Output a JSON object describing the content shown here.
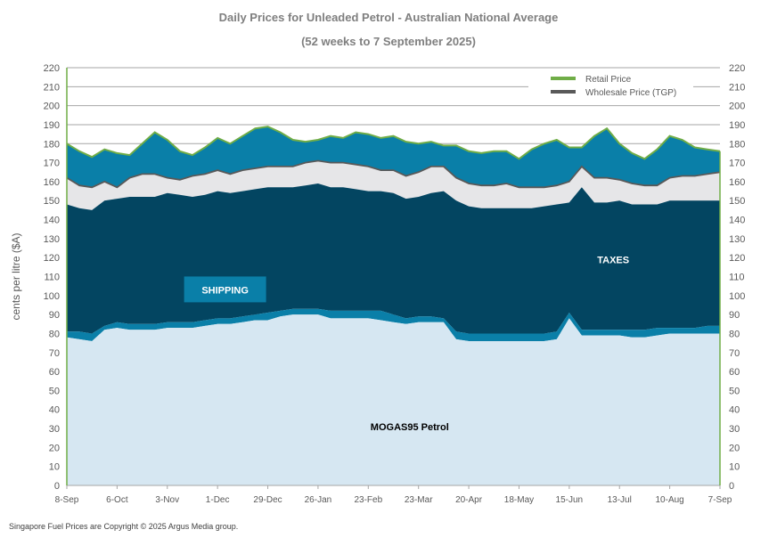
{
  "chart_data": {
    "type": "area",
    "title": "Daily Prices for Unleaded Petrol - Australian National Average",
    "subtitle": "(52 weeks to 7 September 2025)",
    "ylabel": "cents per litre ($A)",
    "ylim": [
      0,
      220
    ],
    "yticks": [
      0,
      10,
      20,
      30,
      40,
      50,
      60,
      70,
      80,
      90,
      100,
      110,
      120,
      130,
      140,
      150,
      160,
      170,
      180,
      190,
      200,
      210,
      220
    ],
    "x_tick_labels": [
      "8-Sep",
      "6-Oct",
      "3-Nov",
      "1-Dec",
      "29-Dec",
      "26-Jan",
      "23-Feb",
      "23-Mar",
      "20-Apr",
      "18-May",
      "15-Jun",
      "13-Jul",
      "10-Aug",
      "7-Sep"
    ],
    "x_weeks": [
      0,
      4,
      8,
      12,
      16,
      20,
      24,
      28,
      32,
      36,
      40,
      44,
      48,
      52
    ],
    "grid": true,
    "legend_position": "top-right",
    "legend": [
      {
        "name": "Retail Price",
        "color": "#70ad47"
      },
      {
        "name": "Wholesale Price (TGP)",
        "color": "#595959"
      }
    ],
    "layer_colors": {
      "mogas": "#d6e7f2",
      "shipping": "#0a7fa8",
      "taxes": "#034561",
      "tgp_gap": "#e6e6e8",
      "margin": "#0a7fa8"
    },
    "annotations": [
      {
        "text": "SHIPPING",
        "style": "box",
        "color": "#ffffff",
        "fill": "#0a7fa8",
        "anchor_week": 12.6,
        "anchor_value": 103
      },
      {
        "text": "TAXES",
        "style": "text",
        "color": "#ffffff",
        "anchor_week": 43.5,
        "anchor_value": 119
      },
      {
        "text": "MOGAS95 Petrol",
        "style": "text",
        "color": "#000000",
        "anchor_week": 27.3,
        "anchor_value": 31
      }
    ],
    "series": [
      {
        "name": "Retail Price",
        "weeks": [
          0,
          1,
          2,
          3,
          4,
          5,
          6,
          7,
          8,
          9,
          10,
          11,
          12,
          13,
          14,
          15,
          16,
          17,
          18,
          19,
          20,
          21,
          22,
          23,
          24,
          25,
          26,
          27,
          28,
          29,
          30,
          31,
          32,
          33,
          34,
          35,
          36,
          37,
          38,
          39,
          40,
          41,
          42,
          43,
          44,
          45,
          46,
          47,
          48,
          49,
          50,
          51,
          52
        ],
        "values": [
          180,
          176,
          173,
          177,
          175,
          174,
          180,
          186,
          182,
          176,
          174,
          178,
          183,
          180,
          184,
          188,
          189,
          186,
          182,
          181,
          182,
          184,
          183,
          186,
          185,
          183,
          184,
          181,
          180,
          181,
          179,
          179,
          176,
          175,
          176,
          176,
          172,
          177,
          180,
          182,
          178,
          178,
          184,
          188,
          180,
          175,
          172,
          177,
          184,
          182,
          178,
          177,
          176
        ]
      },
      {
        "name": "Wholesale Price (TGP)",
        "weeks": [
          0,
          1,
          2,
          3,
          4,
          5,
          6,
          7,
          8,
          9,
          10,
          11,
          12,
          13,
          14,
          15,
          16,
          17,
          18,
          19,
          20,
          21,
          22,
          23,
          24,
          25,
          26,
          27,
          28,
          29,
          30,
          31,
          32,
          33,
          34,
          35,
          36,
          37,
          38,
          39,
          40,
          41,
          42,
          43,
          44,
          45,
          46,
          47,
          48,
          49,
          50,
          51,
          52
        ],
        "values": [
          162,
          158,
          157,
          160,
          157,
          162,
          164,
          164,
          162,
          161,
          163,
          164,
          166,
          164,
          166,
          167,
          168,
          168,
          168,
          170,
          171,
          170,
          170,
          169,
          168,
          166,
          166,
          163,
          165,
          168,
          168,
          162,
          159,
          158,
          158,
          159,
          157,
          157,
          157,
          158,
          160,
          168,
          162,
          162,
          161,
          159,
          158,
          158,
          162,
          163,
          163,
          164,
          165
        ]
      },
      {
        "name": "Taxes (top of band)",
        "weeks": [
          0,
          1,
          2,
          3,
          4,
          5,
          6,
          7,
          8,
          9,
          10,
          11,
          12,
          13,
          14,
          15,
          16,
          17,
          18,
          19,
          20,
          21,
          22,
          23,
          24,
          25,
          26,
          27,
          28,
          29,
          30,
          31,
          32,
          33,
          34,
          35,
          36,
          37,
          38,
          39,
          40,
          41,
          42,
          43,
          44,
          45,
          46,
          47,
          48,
          49,
          50,
          51,
          52
        ],
        "values": [
          148,
          146,
          145,
          150,
          151,
          152,
          152,
          152,
          154,
          153,
          152,
          153,
          155,
          154,
          155,
          156,
          157,
          157,
          157,
          158,
          159,
          157,
          157,
          156,
          155,
          155,
          154,
          151,
          152,
          154,
          155,
          150,
          147,
          146,
          146,
          146,
          146,
          146,
          147,
          148,
          149,
          157,
          149,
          149,
          150,
          148,
          148,
          148,
          150,
          150,
          150,
          150,
          150
        ]
      },
      {
        "name": "Shipping (top of band)",
        "weeks": [
          0,
          1,
          2,
          3,
          4,
          5,
          6,
          7,
          8,
          9,
          10,
          11,
          12,
          13,
          14,
          15,
          16,
          17,
          18,
          19,
          20,
          21,
          22,
          23,
          24,
          25,
          26,
          27,
          28,
          29,
          30,
          31,
          32,
          33,
          34,
          35,
          36,
          37,
          38,
          39,
          40,
          41,
          42,
          43,
          44,
          45,
          46,
          47,
          48,
          49,
          50,
          51,
          52
        ],
        "values": [
          81,
          81,
          80,
          84,
          86,
          85,
          85,
          85,
          86,
          86,
          86,
          87,
          88,
          88,
          89,
          90,
          91,
          92,
          93,
          93,
          93,
          92,
          92,
          92,
          92,
          92,
          90,
          88,
          89,
          89,
          88,
          81,
          80,
          80,
          80,
          80,
          80,
          80,
          80,
          81,
          91,
          82,
          82,
          82,
          82,
          82,
          82,
          83,
          83,
          83,
          83,
          84,
          84
        ]
      },
      {
        "name": "MOGAS95 Petrol",
        "weeks": [
          0,
          1,
          2,
          3,
          4,
          5,
          6,
          7,
          8,
          9,
          10,
          11,
          12,
          13,
          14,
          15,
          16,
          17,
          18,
          19,
          20,
          21,
          22,
          23,
          24,
          25,
          26,
          27,
          28,
          29,
          30,
          31,
          32,
          33,
          34,
          35,
          36,
          37,
          38,
          39,
          40,
          41,
          42,
          43,
          44,
          45,
          46,
          47,
          48,
          49,
          50,
          51,
          52
        ],
        "values": [
          78,
          77,
          76,
          82,
          83,
          82,
          82,
          82,
          83,
          83,
          83,
          84,
          85,
          85,
          86,
          87,
          87,
          89,
          90,
          90,
          90,
          88,
          88,
          88,
          88,
          87,
          86,
          85,
          86,
          86,
          86,
          77,
          76,
          76,
          76,
          76,
          76,
          76,
          76,
          77,
          88,
          79,
          79,
          79,
          79,
          78,
          78,
          79,
          80,
          80,
          80,
          80,
          80
        ]
      }
    ]
  },
  "footer": {
    "copyright": "Singapore Fuel Prices are Copyright © 2025 Argus Media group."
  }
}
